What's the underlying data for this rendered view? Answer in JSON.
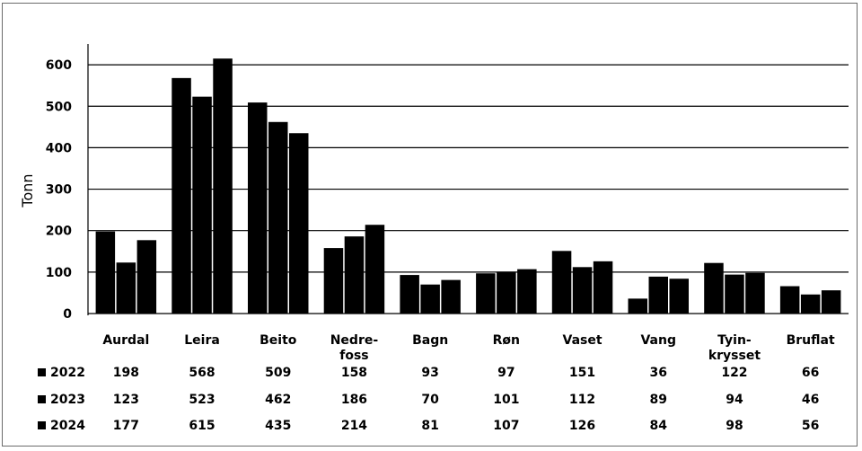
{
  "chart_data": {
    "type": "bar",
    "ylabel": "Tonn",
    "ylim": [
      0,
      650
    ],
    "yticks": [
      0,
      100,
      200,
      300,
      400,
      500,
      600
    ],
    "grid": true,
    "categories": [
      [
        "Aurdal"
      ],
      [
        "Leira"
      ],
      [
        "Beito"
      ],
      [
        "Nedre-",
        "foss"
      ],
      [
        "Bagn"
      ],
      [
        "Røn"
      ],
      [
        "Vaset"
      ],
      [
        "Vang"
      ],
      [
        "Tyin-",
        "krysset"
      ],
      [
        "Bruflat"
      ]
    ],
    "series": [
      {
        "name": "2022",
        "color": "#000000",
        "values": [
          198,
          568,
          509,
          158,
          93,
          97,
          151,
          36,
          122,
          66
        ]
      },
      {
        "name": "2023",
        "color": "#000000",
        "values": [
          123,
          523,
          462,
          186,
          70,
          101,
          112,
          89,
          94,
          46
        ]
      },
      {
        "name": "2024",
        "color": "#000000",
        "values": [
          177,
          615,
          435,
          214,
          81,
          107,
          126,
          84,
          98,
          56
        ]
      }
    ],
    "legend": "data-table-left"
  }
}
